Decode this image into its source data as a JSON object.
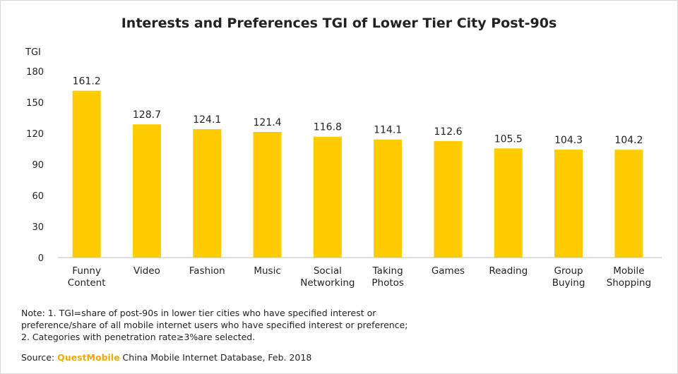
{
  "chart_data": {
    "type": "bar",
    "title": "Interests and Preferences TGI of Lower Tier City Post-90s",
    "ylabel": "TGI",
    "xlabel": "",
    "ylim": [
      0,
      180
    ],
    "yticks": [
      0,
      30,
      60,
      90,
      120,
      150,
      180
    ],
    "categories": [
      [
        "Funny",
        "Content"
      ],
      [
        "Video"
      ],
      [
        "Fashion"
      ],
      [
        "Music"
      ],
      [
        "Social",
        "Networking"
      ],
      [
        "Taking",
        "Photos"
      ],
      [
        "Games"
      ],
      [
        "Reading"
      ],
      [
        "Group",
        "Buying"
      ],
      [
        "Mobile",
        "Shopping"
      ]
    ],
    "values": [
      161.2,
      128.7,
      124.1,
      121.4,
      116.8,
      114.1,
      112.6,
      105.5,
      104.3,
      104.2
    ],
    "bar_color": "#ffcc00",
    "grid": false
  },
  "notes": {
    "line1": "Note: 1. TGI=share of post-90s in lower tier cities who have specified interest or",
    "line2": "preference/share of all mobile internet users who have specified interest or preference;",
    "line3": "2. Categories with penetration rate≥3%are selected."
  },
  "source": {
    "prefix": "Source: ",
    "brand": "QuestMobile",
    "suffix": " China Mobile Internet Database, Feb. 2018",
    "brand_color": "#f5a800"
  }
}
